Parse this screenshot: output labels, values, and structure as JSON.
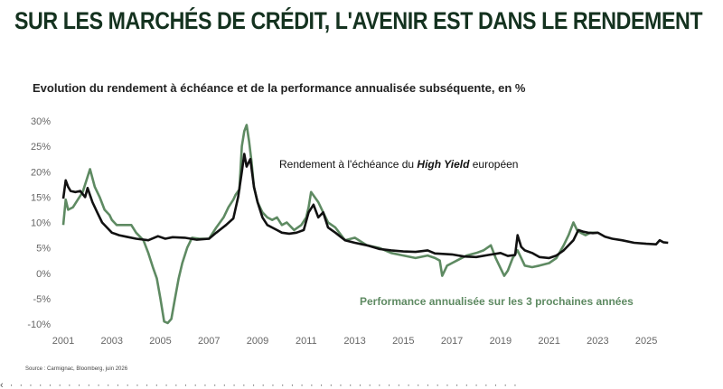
{
  "headline": "SUR LES MARCHÉS DE CRÉDIT, L'AVENIR EST DANS LE RENDEMENT",
  "source": "Source : Carmignac, Bloomberg, juin 2026",
  "colors": {
    "yield": "#111111",
    "performance": "#5e8a62",
    "headline": "#14321f"
  },
  "chart_data": {
    "type": "line",
    "title": "Evolution du rendement à échéance et de la performance annualisée subséquente, en %",
    "ylim": [
      -10,
      30
    ],
    "yticks": [
      30,
      25,
      20,
      15,
      10,
      5,
      0,
      -5,
      -10
    ],
    "ytick_labels": [
      "30%",
      "25%",
      "20%",
      "15%",
      "10%",
      "5%",
      "0%",
      "-5%",
      "-10%"
    ],
    "xlim": [
      2001,
      2026
    ],
    "xticks": [
      2001,
      2003,
      2005,
      2007,
      2009,
      2011,
      2013,
      2015,
      2017,
      2019,
      2021,
      2023,
      2025
    ],
    "xtick_labels": [
      "2001",
      "2003",
      "2005",
      "2007",
      "2009",
      "2011",
      "2013",
      "2015",
      "2017",
      "2019",
      "2021",
      "2023",
      "2025"
    ],
    "grid": false,
    "series": [
      {
        "name_prefix": "Rendement à l'échéance du ",
        "name_italic": "High Yield",
        "name_suffix": " européen",
        "color": "#111111",
        "x": [
          2001.0,
          2001.1,
          2001.2,
          2001.3,
          2001.5,
          2001.7,
          2001.9,
          2002.0,
          2002.2,
          2002.4,
          2002.6,
          2002.8,
          2003.0,
          2003.3,
          2003.6,
          2004.0,
          2004.5,
          2004.9,
          2005.2,
          2005.5,
          2006.0,
          2006.5,
          2007.0,
          2007.3,
          2007.7,
          2008.0,
          2008.2,
          2008.35,
          2008.45,
          2008.55,
          2008.7,
          2008.85,
          2009.0,
          2009.2,
          2009.4,
          2009.6,
          2009.8,
          2010.0,
          2010.3,
          2010.6,
          2010.9,
          2011.1,
          2011.3,
          2011.5,
          2011.7,
          2011.9,
          2012.2,
          2012.6,
          2013.0,
          2013.5,
          2014.0,
          2014.5,
          2015.0,
          2015.5,
          2016.0,
          2016.3,
          2016.7,
          2017.0,
          2017.5,
          2018.0,
          2018.5,
          2019.0,
          2019.3,
          2019.6,
          2019.7,
          2019.85,
          2020.0,
          2020.3,
          2020.6,
          2021.0,
          2021.3,
          2021.6,
          2022.0,
          2022.2,
          2022.4,
          2022.6,
          2022.8,
          2023.0,
          2023.3,
          2023.6,
          2024.0,
          2024.5,
          2025.0,
          2025.4,
          2025.55,
          2025.7,
          2025.9
        ],
        "values": [
          14.7,
          18.3,
          17.0,
          16.2,
          16.0,
          16.2,
          15.0,
          16.8,
          14.0,
          12.0,
          10.0,
          9.0,
          8.0,
          7.5,
          7.2,
          6.8,
          6.5,
          7.3,
          6.8,
          7.1,
          7.0,
          6.6,
          6.8,
          8.0,
          9.5,
          10.8,
          15.0,
          20.0,
          23.5,
          21.0,
          22.5,
          17.0,
          14.0,
          11.0,
          9.5,
          9.0,
          8.5,
          8.0,
          7.8,
          8.0,
          8.5,
          12.0,
          13.5,
          11.0,
          12.0,
          9.0,
          8.0,
          6.5,
          6.0,
          5.5,
          4.8,
          4.5,
          4.3,
          4.2,
          4.5,
          3.9,
          3.8,
          3.7,
          3.3,
          3.2,
          3.6,
          4.0,
          3.4,
          3.6,
          7.5,
          5.2,
          4.5,
          4.0,
          3.2,
          3.0,
          3.5,
          4.5,
          6.5,
          8.5,
          8.2,
          8.0,
          7.9,
          8.0,
          7.2,
          6.8,
          6.5,
          6.0,
          5.8,
          5.7,
          6.5,
          6.1,
          6.0
        ]
      },
      {
        "name": "Performance annualisée sur les 3 prochaines années",
        "color": "#5e8a62",
        "x": [
          2001.0,
          2001.1,
          2001.2,
          2001.4,
          2001.6,
          2001.8,
          2002.0,
          2002.1,
          2002.3,
          2002.5,
          2002.7,
          2002.9,
          2003.0,
          2003.2,
          2003.5,
          2003.8,
          2004.0,
          2004.3,
          2004.5,
          2004.7,
          2004.85,
          2005.0,
          2005.15,
          2005.3,
          2005.45,
          2005.6,
          2005.75,
          2005.9,
          2006.0,
          2006.1,
          2006.3,
          2006.6,
          2007.0,
          2007.3,
          2007.6,
          2007.8,
          2008.0,
          2008.1,
          2008.25,
          2008.35,
          2008.45,
          2008.55,
          2008.65,
          2008.75,
          2008.85,
          2009.0,
          2009.2,
          2009.4,
          2009.6,
          2009.8,
          2010.0,
          2010.2,
          2010.5,
          2010.8,
          2011.0,
          2011.1,
          2011.2,
          2011.35,
          2011.5,
          2011.7,
          2011.9,
          2012.2,
          2012.6,
          2013.0,
          2013.5,
          2014.0,
          2014.5,
          2015.0,
          2015.5,
          2016.0,
          2016.3,
          2016.5,
          2016.6,
          2016.8,
          2017.0,
          2017.2,
          2017.6,
          2018.0,
          2018.3,
          2018.6,
          2018.8,
          2019.0,
          2019.15,
          2019.3,
          2019.5,
          2019.7,
          2020.0,
          2020.3,
          2020.6,
          2021.0,
          2021.3,
          2021.6,
          2021.8,
          2022.0,
          2022.15,
          2022.3,
          2022.5,
          2022.7,
          2023.0
        ],
        "values": [
          9.5,
          14.5,
          12.5,
          13.0,
          14.5,
          16.0,
          19.0,
          20.5,
          17.0,
          15.0,
          12.5,
          11.5,
          10.5,
          9.5,
          9.5,
          9.5,
          8.0,
          6.5,
          4.0,
          1.0,
          -1.0,
          -5.0,
          -9.5,
          -9.8,
          -9.0,
          -5.0,
          -1.0,
          2.0,
          3.5,
          5.0,
          7.0,
          6.8,
          6.8,
          9.0,
          11.0,
          13.0,
          14.5,
          15.5,
          16.5,
          25.0,
          28.0,
          29.2,
          26.0,
          22.0,
          17.0,
          14.0,
          12.0,
          11.0,
          10.5,
          11.0,
          9.5,
          10.0,
          8.5,
          9.5,
          11.0,
          13.0,
          16.0,
          15.0,
          14.0,
          12.0,
          10.0,
          9.0,
          6.5,
          7.0,
          5.5,
          5.0,
          4.0,
          3.5,
          3.0,
          3.5,
          3.0,
          2.5,
          -0.5,
          1.5,
          2.0,
          2.5,
          3.5,
          4.0,
          4.5,
          5.5,
          3.0,
          1.0,
          -0.5,
          0.5,
          3.0,
          4.5,
          1.5,
          1.2,
          1.5,
          2.0,
          3.0,
          5.5,
          7.5,
          10.0,
          8.5,
          8.0,
          7.5,
          8.0,
          8.0
        ]
      }
    ]
  }
}
